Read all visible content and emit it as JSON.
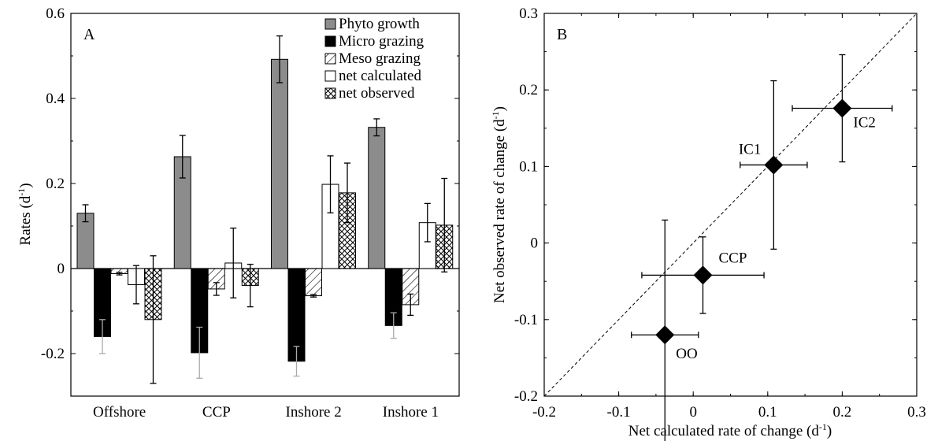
{
  "chart_data": [
    {
      "panel": "A",
      "type": "bar",
      "ylabel_main": "Rates (d",
      "ylabel_sup": "-1",
      "ylabel_close": ")",
      "ylim": [
        -0.3,
        0.6
      ],
      "yticks": [
        -0.2,
        0,
        0.2,
        0.4,
        0.6
      ],
      "ytick_labels": [
        "-0.2",
        "0",
        "0.2",
        "0.4",
        "0.6"
      ],
      "categories": [
        "Offshore",
        "CCP",
        "Inshore 2",
        "Inshore 1"
      ],
      "legend_position": "top-right",
      "series": [
        {
          "name": "Phyto growth",
          "pattern": "gray",
          "values": [
            0.13,
            0.263,
            0.492,
            0.332
          ],
          "err": [
            0.02,
            0.05,
            0.055,
            0.02
          ]
        },
        {
          "name": "Micro grazing",
          "pattern": "black",
          "values": [
            -0.16,
            -0.198,
            -0.218,
            -0.134
          ],
          "err": [
            0.04,
            0.06,
            0.035,
            0.03
          ]
        },
        {
          "name": "Meso grazing",
          "pattern": "hatch",
          "values": [
            -0.012,
            -0.048,
            -0.064,
            -0.085
          ],
          "err": [
            0.003,
            0.015,
            0.003,
            0.025
          ]
        },
        {
          "name": "net calculated",
          "pattern": "white",
          "values": [
            -0.038,
            0.013,
            0.198,
            0.108
          ],
          "err": [
            0.045,
            0.082,
            0.067,
            0.045
          ]
        },
        {
          "name": "net observed",
          "pattern": "crosshatch",
          "values": [
            -0.12,
            -0.04,
            0.178,
            0.102
          ],
          "err": [
            0.15,
            0.05,
            0.07,
            0.11
          ]
        }
      ]
    },
    {
      "panel": "B",
      "type": "scatter",
      "xlabel_main": "Net calculated rate of change (d",
      "xlabel_sup": "-1",
      "xlabel_close": ")",
      "ylabel_main": "Net observed rate of change (d",
      "ylabel_sup": "-1",
      "ylabel_close": ")",
      "xlim": [
        -0.2,
        0.3
      ],
      "ylim": [
        -0.2,
        0.3
      ],
      "xticks": [
        -0.2,
        -0.1,
        0,
        0.1,
        0.2,
        0.3
      ],
      "xtick_labels": [
        "-0.2",
        "-0.1",
        "0",
        "0.1",
        "0.2",
        "0.3"
      ],
      "yticks": [
        -0.2,
        -0.1,
        0,
        0.1,
        0.2,
        0.3
      ],
      "ytick_labels": [
        "-0.2",
        "-0.1",
        "0",
        "0.1",
        "0.2",
        "0.3"
      ],
      "reference_line": "1:1 dashed",
      "points": [
        {
          "label": "OO",
          "x": -0.038,
          "y": -0.12,
          "xerr": 0.045,
          "yerr": 0.15
        },
        {
          "label": "CCP",
          "x": 0.013,
          "y": -0.042,
          "xerr": 0.082,
          "yerr": 0.05
        },
        {
          "label": "IC1",
          "x": 0.108,
          "y": 0.102,
          "xerr": 0.045,
          "yerr": 0.11
        },
        {
          "label": "IC2",
          "x": 0.2,
          "y": 0.176,
          "xerr": 0.067,
          "yerr": 0.07
        }
      ]
    }
  ]
}
